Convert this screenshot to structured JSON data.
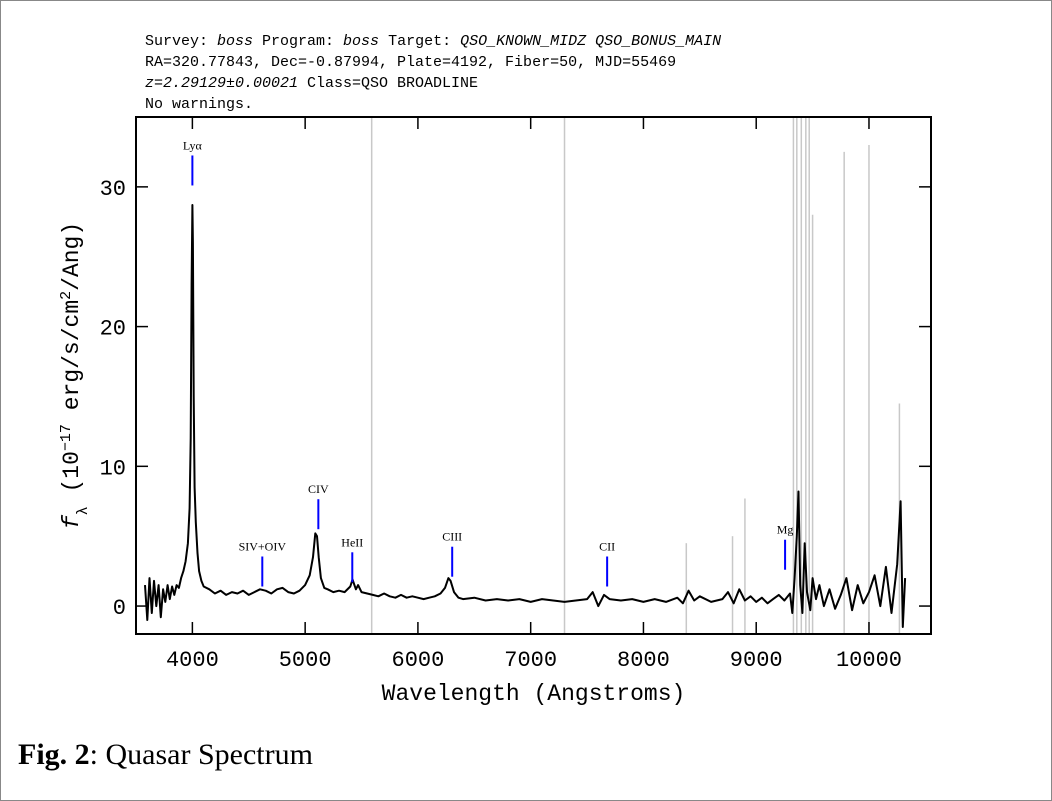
{
  "chart_data": {
    "type": "line",
    "header": [
      [
        {
          "text": "Survey: "
        },
        {
          "text": "boss",
          "italic": true
        },
        {
          "text": " Program: "
        },
        {
          "text": "boss",
          "italic": true
        },
        {
          "text": " Target: "
        },
        {
          "text": "QSO_KNOWN_MIDZ QSO_BONUS_MAIN",
          "italic": true
        }
      ],
      [
        {
          "text": "RA=320.77843, Dec=-0.87994, Plate=4192, Fiber=50, MJD=55469"
        }
      ],
      [
        {
          "text": "z=2.29129±0.00021",
          "italic": true
        },
        {
          "text": " Class=QSO BROADLINE"
        }
      ],
      [
        {
          "text": "No warnings."
        }
      ]
    ],
    "xlabel": "Wavelength (Angstroms)",
    "ylabel": [
      {
        "text": "f",
        "italic": true
      },
      {
        "text": "λ",
        "shift": "sub"
      },
      {
        "text": " (10"
      },
      {
        "text": "−17",
        "shift": "super"
      },
      {
        "text": " erg/s/cm"
      },
      {
        "text": "2",
        "shift": "super"
      },
      {
        "text": "/Ang)"
      }
    ],
    "caption": {
      "label": "Fig. 2",
      "text": ": Quasar Spectrum"
    },
    "xlim": [
      3500,
      10550
    ],
    "ylim": [
      -2,
      35
    ],
    "xticks": [
      4000,
      5000,
      6000,
      7000,
      8000,
      9000,
      10000
    ],
    "yticks": [
      0,
      10,
      20,
      30
    ],
    "series": [
      {
        "color": "#000000",
        "x": [
          3580,
          3600,
          3620,
          3640,
          3660,
          3680,
          3700,
          3720,
          3740,
          3760,
          3780,
          3800,
          3820,
          3840,
          3860,
          3880,
          3900,
          3920,
          3940,
          3960,
          3975,
          3985,
          3993,
          4000,
          4005,
          4012,
          4020,
          4030,
          4045,
          4060,
          4080,
          4100,
          4150,
          4200,
          4250,
          4300,
          4350,
          4400,
          4450,
          4500,
          4550,
          4600,
          4650,
          4700,
          4750,
          4800,
          4850,
          4900,
          4950,
          5000,
          5040,
          5070,
          5090,
          5105,
          5120,
          5140,
          5170,
          5200,
          5250,
          5300,
          5350,
          5400,
          5420,
          5450,
          5470,
          5500,
          5550,
          5600,
          5650,
          5700,
          5750,
          5800,
          5850,
          5900,
          5950,
          6000,
          6050,
          6100,
          6150,
          6200,
          6240,
          6270,
          6290,
          6320,
          6360,
          6400,
          6500,
          6600,
          6700,
          6800,
          6900,
          7000,
          7100,
          7200,
          7300,
          7400,
          7500,
          7550,
          7600,
          7650,
          7700,
          7800,
          7900,
          8000,
          8100,
          8200,
          8300,
          8350,
          8400,
          8450,
          8500,
          8600,
          8700,
          8750,
          8800,
          8850,
          8900,
          8950,
          9000,
          9050,
          9100,
          9150,
          9200,
          9250,
          9300,
          9320,
          9340,
          9360,
          9375,
          9390,
          9410,
          9430,
          9450,
          9480,
          9500,
          9530,
          9560,
          9600,
          9650,
          9700,
          9750,
          9800,
          9850,
          9900,
          9950,
          10000,
          10050,
          10100,
          10150,
          10200,
          10250,
          10280,
          10300,
          10320
        ],
        "values": [
          1.5,
          -1,
          2,
          -0.5,
          1.8,
          0,
          1.5,
          -0.8,
          1.2,
          0.3,
          1.5,
          0.5,
          1.4,
          0.8,
          1.5,
          1.3,
          2,
          2.5,
          3.2,
          4.5,
          7,
          12,
          23,
          28.7,
          26,
          15,
          8.5,
          6,
          3.8,
          2.5,
          1.8,
          1.4,
          1.2,
          0.9,
          1.1,
          0.8,
          1.0,
          0.9,
          1.1,
          0.8,
          1.0,
          1.2,
          1.1,
          0.9,
          1.2,
          1.3,
          1.0,
          0.9,
          1.1,
          1.5,
          2.2,
          3.5,
          5.2,
          5.0,
          3.5,
          2.0,
          1.3,
          1.2,
          1.0,
          1.1,
          1.0,
          1.4,
          1.9,
          1.2,
          1.5,
          1.0,
          0.9,
          0.8,
          0.7,
          0.9,
          0.7,
          0.6,
          0.8,
          0.6,
          0.7,
          0.6,
          0.5,
          0.6,
          0.7,
          0.9,
          1.3,
          2.0,
          1.8,
          1.0,
          0.6,
          0.5,
          0.6,
          0.4,
          0.5,
          0.4,
          0.5,
          0.3,
          0.5,
          0.4,
          0.3,
          0.4,
          0.5,
          1.0,
          0.0,
          0.8,
          0.5,
          0.4,
          0.5,
          0.3,
          0.5,
          0.3,
          0.6,
          0.2,
          1.1,
          0.4,
          0.7,
          0.3,
          0.5,
          1.0,
          0.2,
          1.2,
          0.4,
          0.7,
          0.3,
          0.6,
          0.2,
          0.5,
          0.8,
          0.4,
          0.9,
          -0.5,
          2.0,
          5.0,
          8.2,
          1.5,
          -0.5,
          4.5,
          1.0,
          -0.3,
          2.0,
          0.5,
          1.5,
          0.0,
          1.2,
          -0.2,
          0.8,
          2.0,
          -0.3,
          1.5,
          0.2,
          1.0,
          2.2,
          0.0,
          2.8,
          -0.5,
          3.0,
          7.5,
          -1.5,
          2.0
        ]
      }
    ],
    "spikes": {
      "color": "#c8c8c8",
      "x": [
        5590,
        7300,
        8380,
        8790,
        8900,
        9330,
        9360,
        9400,
        9440,
        9470,
        9500,
        9780,
        10000,
        10270
      ],
      "values": [
        35,
        35,
        4.5,
        5,
        7.7,
        35,
        35,
        35,
        35,
        35,
        28,
        32.5,
        33,
        14.5
      ]
    },
    "marker_color": "#0000ff",
    "lines": [
      {
        "label": "Lyα",
        "wavelength": 4000,
        "y": 30.1
      },
      {
        "label": "SIV+OIV",
        "wavelength": 4620,
        "y": 1.4
      },
      {
        "label": "CIV",
        "wavelength": 5117,
        "y": 5.5
      },
      {
        "label": "HeII",
        "wavelength": 5418,
        "y": 1.7
      },
      {
        "label": "CIII",
        "wavelength": 6304,
        "y": 2.1
      },
      {
        "label": "CII",
        "wavelength": 7678,
        "y": 1.4
      },
      {
        "label": "Mg",
        "wavelength": 9256,
        "y": 2.6
      }
    ]
  }
}
